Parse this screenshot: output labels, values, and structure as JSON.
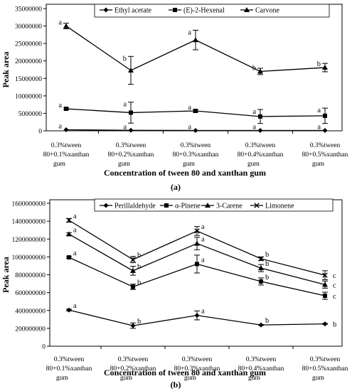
{
  "chart_data": [
    {
      "panel_label": "(a)",
      "type": "line",
      "xlabel": "Concentration of tween 80 and xanthan gum",
      "ylabel": "Peak area",
      "ylim": [
        0,
        35000000
      ],
      "yticks": [
        "0",
        "5000000",
        "10000000",
        "15000000",
        "20000000",
        "25000000",
        "30000000",
        "35000000"
      ],
      "categories": [
        [
          "0.3%tween",
          "80+0.1%xanthan",
          "gum"
        ],
        [
          "0.3%tween",
          "80+0.2%xanthan",
          "gum"
        ],
        [
          "0.3%tween",
          "80+0.3%xanthan",
          "gum"
        ],
        [
          "0.3%tween",
          "80+0.4%xanthan",
          "gum"
        ],
        [
          "0.3%tween",
          "80+0.5%xanthan",
          "gum"
        ]
      ],
      "legend_position": "top",
      "series": [
        {
          "name": "Ethyl acetate",
          "marker": "diamond",
          "values": [
            300000,
            150000,
            100000,
            100000,
            100000
          ],
          "errors": [
            0,
            0,
            0,
            0,
            0
          ],
          "letters": [
            "a",
            "a",
            "a",
            "a",
            "a"
          ]
        },
        {
          "name": "(E)-2-Hexenal",
          "marker": "square",
          "values": [
            6300000,
            5200000,
            5700000,
            4100000,
            4300000
          ],
          "errors": [
            300000,
            3000000,
            400000,
            2000000,
            2200000
          ],
          "letters": [
            "a",
            "a",
            "a",
            "a",
            "a"
          ]
        },
        {
          "name": "Carvone",
          "marker": "triangle",
          "values": [
            30000000,
            17300000,
            26000000,
            17000000,
            18100000
          ],
          "errors": [
            800000,
            4000000,
            2800000,
            900000,
            1200000
          ],
          "letters": [
            "a",
            "b",
            "a",
            "b",
            "b"
          ]
        }
      ]
    },
    {
      "panel_label": "(b)",
      "type": "line",
      "xlabel": "Concentration of tween 80 and xanthan gum",
      "ylabel": "Peak area",
      "ylim": [
        0,
        1600000000
      ],
      "yticks": [
        "0",
        "200000000",
        "400000000",
        "600000000",
        "800000000",
        "1000000000",
        "1200000000",
        "1400000000",
        "1600000000"
      ],
      "categories": [
        [
          "0.3%tween",
          "80+0.1%xanthan",
          "gum"
        ],
        [
          "0.3%tween",
          "80+0.2%xanthan",
          "gum"
        ],
        [
          "0.3%tween",
          "80+0.3%xanthan",
          "gum"
        ],
        [
          "0.3%tween",
          "80+0.4%xanthan",
          "gum"
        ],
        [
          "0.3%tween",
          "80+0.5%xanthan",
          "gum"
        ]
      ],
      "legend_position": "top",
      "series": [
        {
          "name": "Perillaldehyde",
          "marker": "diamond",
          "values": [
            405000000,
            230000000,
            345000000,
            238000000,
            250000000
          ],
          "errors": [
            10000000,
            30000000,
            50000000,
            5000000,
            5000000
          ],
          "letters": [
            "a",
            "b",
            "a",
            "b",
            "b"
          ]
        },
        {
          "name": "α-Pinene",
          "marker": "square",
          "values": [
            995000000,
            665000000,
            920000000,
            725000000,
            565000000
          ],
          "errors": [
            10000000,
            30000000,
            100000000,
            40000000,
            40000000
          ],
          "letters": [
            "a",
            "b",
            "a",
            "b",
            "c"
          ]
        },
        {
          "name": "3-Carene",
          "marker": "triangle",
          "values": [
            1255000000,
            845000000,
            1150000000,
            875000000,
            690000000
          ],
          "errors": [
            15000000,
            50000000,
            70000000,
            40000000,
            40000000
          ],
          "letters": [
            "a",
            "b",
            "a",
            "b",
            "c"
          ]
        },
        {
          "name": "Limonene",
          "marker": "x",
          "values": [
            1410000000,
            970000000,
            1290000000,
            980000000,
            795000000
          ],
          "errors": [
            20000000,
            35000000,
            50000000,
            20000000,
            50000000
          ],
          "letters": [
            "a",
            "b",
            "a",
            "b",
            "c"
          ]
        }
      ]
    }
  ]
}
